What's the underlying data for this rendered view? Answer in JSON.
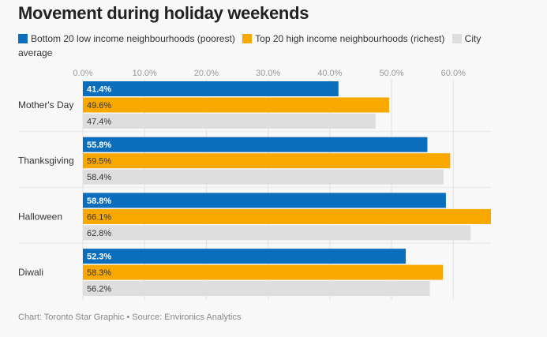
{
  "title": "Movement during holiday weekends",
  "footer": "Chart: Toronto Star Graphic • Source: Environics Analytics",
  "legend": [
    {
      "label": "Bottom 20 low income neighbourhoods (poorest)",
      "color": "#0a6ebd"
    },
    {
      "label": "Top 20 high income neighbourhoods (richest)",
      "color": "#f9a800"
    },
    {
      "label": "City average",
      "color": "#dedede"
    }
  ],
  "chart_data": {
    "type": "bar",
    "orientation": "horizontal",
    "categories": [
      "Mother's Day",
      "Thanksgiving",
      "Halloween",
      "Diwali"
    ],
    "series": [
      {
        "name": "Bottom 20 low income neighbourhoods (poorest)",
        "color": "#0a6ebd",
        "label_color": "#ffffff",
        "values": [
          41.4,
          55.8,
          58.8,
          52.3
        ]
      },
      {
        "name": "Top 20 high income neighbourhoods (richest)",
        "color": "#f9a800",
        "label_color": "#333333",
        "values": [
          49.6,
          59.5,
          66.1,
          58.3
        ]
      },
      {
        "name": "City average",
        "color": "#dedede",
        "label_color": "#333333",
        "values": [
          47.4,
          58.4,
          62.8,
          56.2
        ]
      }
    ],
    "xlim": [
      0,
      66.1
    ],
    "xticks": [
      0,
      10,
      20,
      30,
      40,
      50,
      60
    ],
    "tick_labels": [
      "0.0%",
      "10.0%",
      "20.0%",
      "30.0%",
      "40.0%",
      "50.0%",
      "60.0%"
    ],
    "value_format": "%",
    "grid": true,
    "legend_position": "top"
  }
}
